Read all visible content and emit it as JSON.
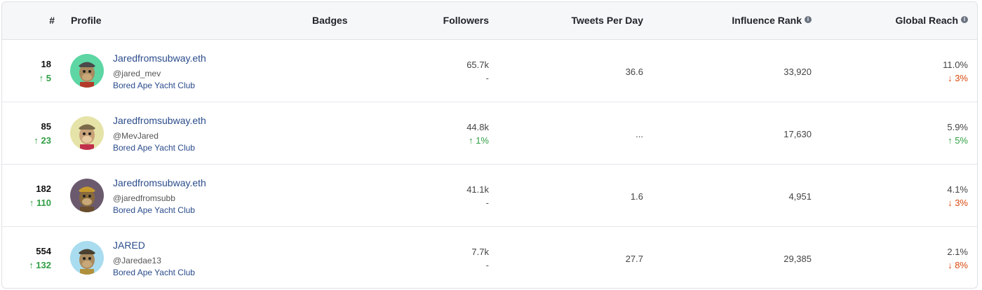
{
  "columns": {
    "rank": "#",
    "profile": "Profile",
    "badges": "Badges",
    "followers": "Followers",
    "tweets_per_day": "Tweets Per Day",
    "influence_rank": "Influence Rank",
    "global_reach": "Global Reach",
    "info_icon": "i"
  },
  "colors": {
    "up": "#2f9e44",
    "down": "#d9480f",
    "link": "#2b4c8c"
  },
  "rows": [
    {
      "rank": "18",
      "rank_change": "↑ 5",
      "name": "Jaredfromsubway.eth",
      "handle": "@jared_mev",
      "collection": "Bored Ape Yacht Club",
      "avatar_bg": "#5dd6a4",
      "avatar_icon": "ape-avatar-icon",
      "followers": "65.7k",
      "followers_change": "-",
      "tweets_per_day": "36.6",
      "influence_rank": "33,920",
      "global_reach": "11.0%",
      "global_reach_change": "↓ 3%"
    },
    {
      "rank": "85",
      "rank_change": "↑ 23",
      "name": "Jaredfromsubway.eth",
      "handle": "@MevJared",
      "collection": "Bored Ape Yacht Club",
      "avatar_bg": "#e6e3a8",
      "avatar_icon": "ape-avatar-icon",
      "followers": "44.8k",
      "followers_change": "↑ 1%",
      "tweets_per_day": "...",
      "influence_rank": "17,630",
      "global_reach": "5.9%",
      "global_reach_change": "↑ 5%"
    },
    {
      "rank": "182",
      "rank_change": "↑ 110",
      "name": "Jaredfromsubway.eth",
      "handle": "@jaredfromsubb",
      "collection": "Bored Ape Yacht Club",
      "avatar_bg": "#6b5a6e",
      "avatar_icon": "ape-avatar-icon",
      "followers": "41.1k",
      "followers_change": "-",
      "tweets_per_day": "1.6",
      "influence_rank": "4,951",
      "global_reach": "4.1%",
      "global_reach_change": "↓ 3%"
    },
    {
      "rank": "554",
      "rank_change": "↑ 132",
      "name": "JARED",
      "handle": "@Jaredae13",
      "collection": "Bored Ape Yacht Club",
      "avatar_bg": "#a9dcef",
      "avatar_icon": "ape-avatar-icon",
      "followers": "7.7k",
      "followers_change": "-",
      "tweets_per_day": "27.7",
      "influence_rank": "29,385",
      "global_reach": "2.1%",
      "global_reach_change": "↓ 8%"
    }
  ]
}
